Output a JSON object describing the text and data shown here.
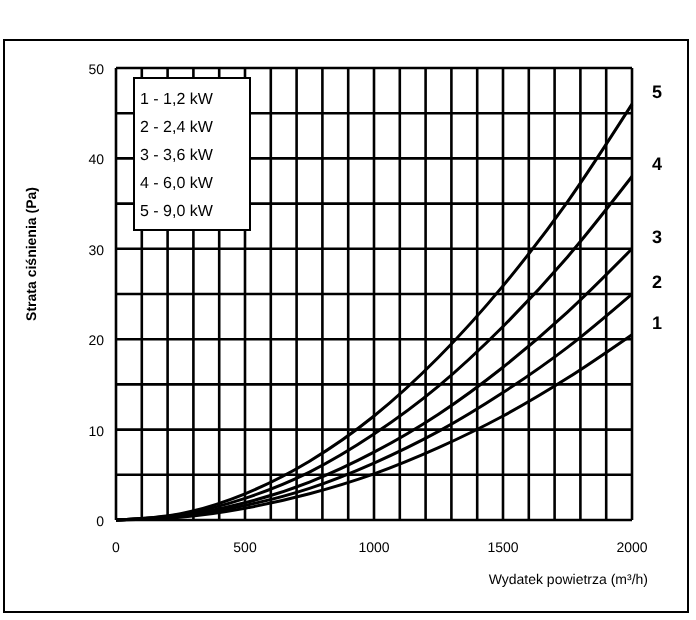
{
  "chart_data": {
    "type": "line",
    "xlabel": "Wydatek powietrza (m³/h)",
    "ylabel": "Strata ciśnienia (Pa)",
    "x": [
      0,
      250,
      500,
      750,
      1000,
      1250,
      1500,
      1750,
      2000
    ],
    "series": [
      {
        "name": "1",
        "color": "#000000",
        "values": [
          0,
          0.3,
          1.3,
          2.9,
          5.1,
          8.0,
          11.5,
          15.7,
          20.5
        ]
      },
      {
        "name": "2",
        "color": "#000000",
        "values": [
          0,
          0.4,
          1.6,
          3.5,
          6.3,
          9.8,
          14.1,
          19.1,
          25
        ]
      },
      {
        "name": "3",
        "color": "#000000",
        "values": [
          0,
          0.5,
          1.9,
          4.2,
          7.5,
          11.7,
          16.9,
          23.0,
          30
        ]
      },
      {
        "name": "4",
        "color": "#000000",
        "values": [
          0,
          0.6,
          2.4,
          5.3,
          9.5,
          14.8,
          21.4,
          29.1,
          38
        ]
      },
      {
        "name": "5",
        "color": "#000000",
        "values": [
          0,
          0.7,
          2.9,
          6.5,
          11.5,
          18.0,
          25.9,
          35.2,
          46
        ]
      }
    ],
    "annotations": [
      "1 - 1,2 kW",
      "2 - 2,4 kW",
      "3 - 3,6 kW",
      "4 - 6,0 kW",
      "5 - 9,0 kW"
    ],
    "xlim": [
      0,
      2000
    ],
    "ylim": [
      0,
      50
    ],
    "xticks": [
      0,
      {
        "value": 100,
        "label": null
      },
      {
        "value": 200,
        "label": null
      },
      {
        "value": 300,
        "label": null
      },
      {
        "value": 400,
        "label": null
      },
      500,
      {
        "value": 600,
        "label": null
      },
      {
        "value": 700,
        "label": null
      },
      {
        "value": 800,
        "label": null
      },
      {
        "value": 900,
        "label": null
      },
      1000,
      {
        "value": 1100,
        "label": null
      },
      {
        "value": 1200,
        "label": null
      },
      {
        "value": 1300,
        "label": null
      },
      {
        "value": 1400,
        "label": null
      },
      1500,
      {
        "value": 1600,
        "label": null
      },
      {
        "value": 1700,
        "label": null
      },
      {
        "value": 1800,
        "label": null
      },
      {
        "value": 1900,
        "label": null
      },
      2000
    ],
    "yticks": [
      0,
      {
        "value": 5,
        "label": null
      },
      10,
      {
        "value": 15,
        "label": null
      },
      20,
      {
        "value": 25,
        "label": null
      },
      30,
      {
        "value": 35,
        "label": null
      },
      40,
      {
        "value": 45,
        "label": null
      },
      50
    ],
    "grid": true,
    "marker": "none",
    "line_style": "solid"
  }
}
